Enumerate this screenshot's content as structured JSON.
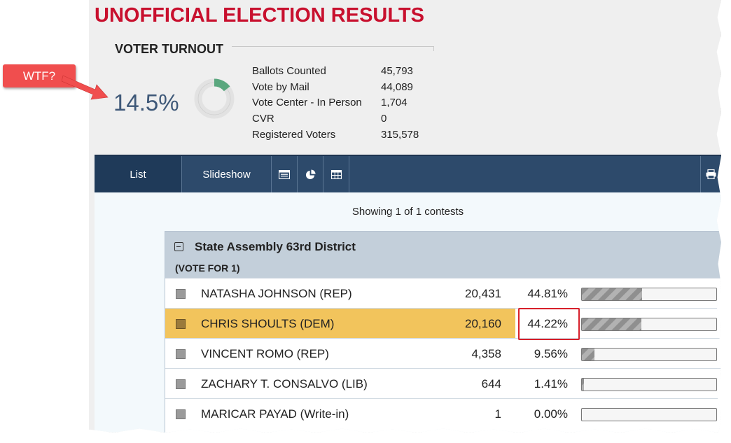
{
  "page_title": "UNOFFICIAL ELECTION RESULTS",
  "turnout": {
    "heading": "VOTER TURNOUT",
    "percent_text": "14.5%",
    "percent_value": 14.5,
    "stats": [
      {
        "label": "Ballots Counted",
        "value": "45,793"
      },
      {
        "label": "Vote by Mail",
        "value": "44,089"
      },
      {
        "label": "Vote Center - In Person",
        "value": "1,704"
      },
      {
        "label": "CVR",
        "value": "0"
      },
      {
        "label": "Registered Voters",
        "value": "315,578"
      }
    ]
  },
  "nav": {
    "tabs": [
      {
        "label": "List"
      },
      {
        "label": "Slideshow"
      }
    ],
    "icons": [
      "ballot-list-icon",
      "pie-chart-icon",
      "table-grid-icon",
      "print-icon"
    ]
  },
  "showing_text": "Showing 1 of 1 contests",
  "contest": {
    "title": "State Assembly 63rd District",
    "vote_for": "(VOTE FOR 1)",
    "candidates": [
      {
        "name": "NATASHA JOHNSON (REP)",
        "votes": "20,431",
        "percent": "44.81%",
        "share": 44.81,
        "winner": false
      },
      {
        "name": "CHRIS SHOULTS (DEM)",
        "votes": "20,160",
        "percent": "44.22%",
        "share": 44.22,
        "winner": true
      },
      {
        "name": "VINCENT ROMO (REP)",
        "votes": "4,358",
        "percent": "9.56%",
        "share": 9.56,
        "winner": false
      },
      {
        "name": "ZACHARY T. CONSALVO (LIB)",
        "votes": "644",
        "percent": "1.41%",
        "share": 1.41,
        "winner": false
      },
      {
        "name": "MARICAR PAYAD (Write-in)",
        "votes": "1",
        "percent": "0.00%",
        "share": 0.0,
        "winner": false
      }
    ]
  },
  "annotation": {
    "callout_text": "WTF?"
  },
  "colors": {
    "title_red": "#c8102e",
    "nav_blue": "#2d4a6b",
    "winner_highlight": "#f2c45c",
    "turnout_green": "#5aa77e",
    "callout_red": "#f04e4e"
  }
}
